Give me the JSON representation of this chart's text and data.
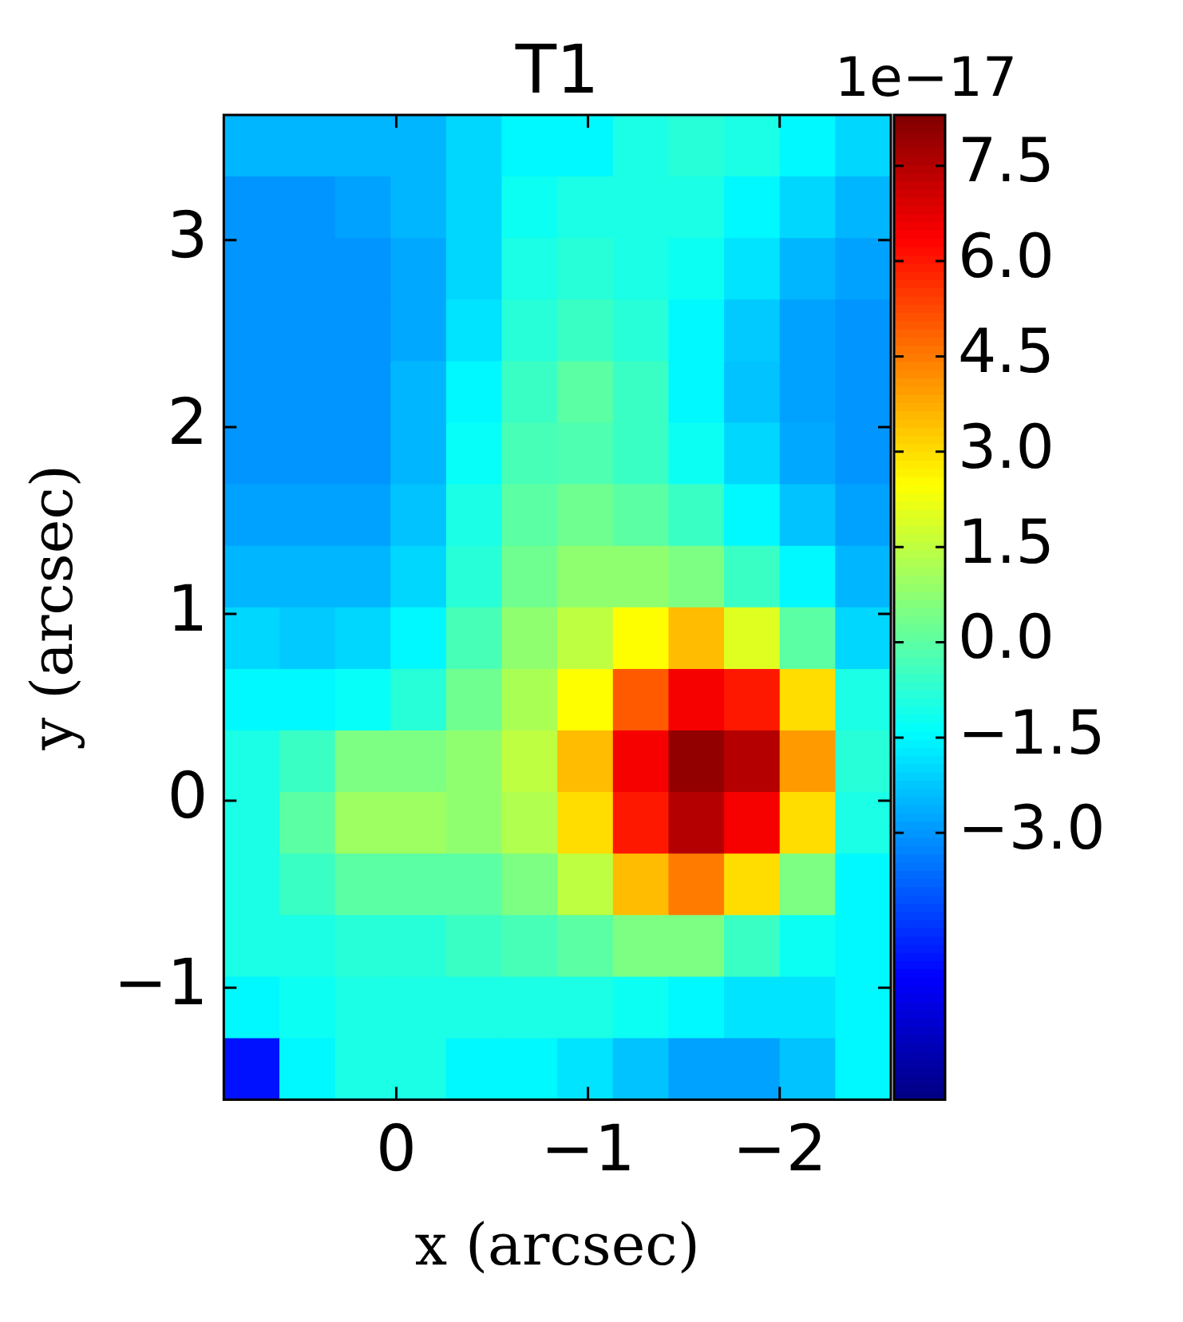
{
  "chart_data": {
    "type": "heatmap",
    "title": "T1",
    "xlabel": "x (arcsec)",
    "ylabel": "y (arcsec)",
    "clabel": "1e−17",
    "xlim": [
      0.9,
      -2.58
    ],
    "ylim": [
      -1.6,
      3.67
    ],
    "xticks": [
      0,
      {
        "value": -1,
        "label": "−1"
      },
      {
        "value": -2,
        "label": "−2"
      }
    ],
    "yticks": [
      {
        "value": -1,
        "label": "−1"
      },
      0,
      1,
      2,
      3
    ],
    "clim": [
      -7.2,
      8.3
    ],
    "cticks": [
      {
        "value": -3,
        "label": "−3.0"
      },
      {
        "value": -1.5,
        "label": "−1.5"
      },
      {
        "value": 0,
        "label": "0.0"
      },
      1.5,
      {
        "value": 3,
        "label": "3.0"
      },
      4.5,
      {
        "value": 6,
        "label": "6.0"
      },
      7.5
    ],
    "cells": [
      [
        -2.5,
        -2.5,
        -2.5,
        -2.5,
        -2,
        -1.5,
        -1.5,
        -1,
        -0.8,
        -1,
        -1.5,
        -2
      ],
      [
        -3,
        -3,
        -2.8,
        -2.5,
        -2,
        -1.2,
        -1,
        -1,
        -1,
        -1.5,
        -2,
        -2.5
      ],
      [
        -3,
        -3,
        -3,
        -2.7,
        -2,
        -1,
        -0.8,
        -1,
        -1.2,
        -1.8,
        -2.5,
        -2.8
      ],
      [
        -3,
        -3,
        -3,
        -2.7,
        -1.8,
        -0.8,
        -0.5,
        -0.8,
        -1.5,
        -2.2,
        -2.8,
        -3
      ],
      [
        -3,
        -3,
        -3,
        -2.5,
        -1.5,
        -0.5,
        0,
        -0.5,
        -1.5,
        -2.3,
        -2.8,
        -3
      ],
      [
        -3,
        -3,
        -3,
        -2.5,
        -1.3,
        -0.3,
        -0.2,
        -0.5,
        -1.2,
        -2,
        -2.7,
        -3
      ],
      [
        -2.8,
        -2.8,
        -2.8,
        -2.3,
        -1,
        0,
        0.3,
        0,
        -0.5,
        -1.5,
        -2.3,
        -2.8
      ],
      [
        -2.5,
        -2.5,
        -2.5,
        -2,
        -0.8,
        0.3,
        0.8,
        0.8,
        0.5,
        -0.5,
        -1.5,
        -2.5
      ],
      [
        -2,
        -2.2,
        -2,
        -1.5,
        -0.3,
        0.8,
        1.5,
        2.5,
        3.5,
        2,
        0,
        -2
      ],
      [
        -1.5,
        -1.5,
        -1.3,
        -0.8,
        0.3,
        1.2,
        2.5,
        5,
        6.5,
        6,
        3,
        -1
      ],
      [
        -1,
        -0.5,
        0.5,
        0.5,
        0.8,
        1.5,
        3.5,
        6.5,
        8,
        7.5,
        4,
        -0.8
      ],
      [
        -1,
        0,
        1,
        1,
        0.8,
        1.3,
        3,
        6,
        7.5,
        6.5,
        3,
        -1
      ],
      [
        -1,
        -0.5,
        0,
        0,
        0,
        0.5,
        1.5,
        3.5,
        4.5,
        3,
        0.5,
        -1.5
      ],
      [
        -1,
        -1,
        -0.8,
        -0.8,
        -0.5,
        -0.3,
        0,
        0.5,
        0.5,
        -0.5,
        -1.2,
        -1.5
      ],
      [
        -1.5,
        -1.2,
        -1,
        -1,
        -1,
        -1,
        -1,
        -1.2,
        -1.5,
        -1.8,
        -1.8,
        -1.5
      ],
      [
        -5,
        -1.5,
        -1,
        -1,
        -1.5,
        -1.5,
        -1.8,
        -2.3,
        -2.8,
        -2.8,
        -2.3,
        -1.5
      ]
    ]
  }
}
